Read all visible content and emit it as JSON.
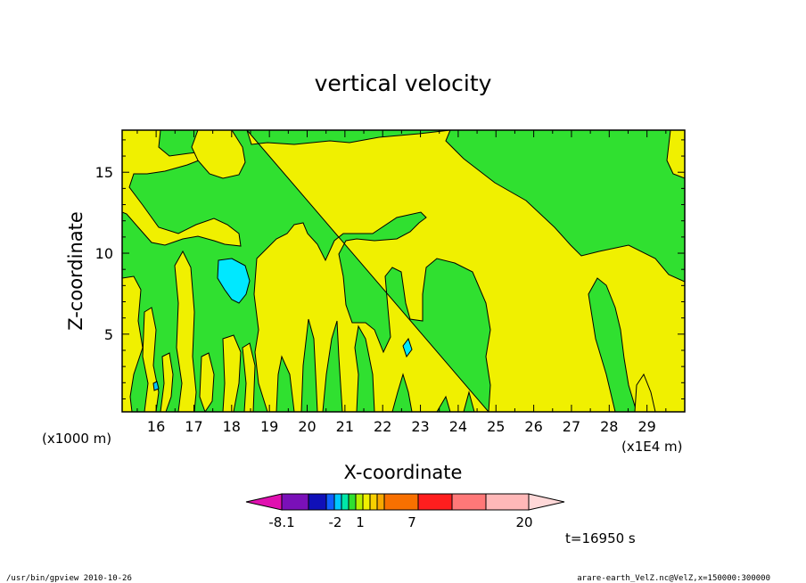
{
  "chart_data": {
    "type": "heatmap",
    "title": "vertical velocity",
    "xlabel": "X-coordinate",
    "ylabel": "Z-coordinate",
    "x_unit_note": "(x1E4 m)",
    "y_unit_note": "(x1000 m)",
    "x_ticks": [
      16,
      17,
      18,
      19,
      20,
      21,
      22,
      23,
      24,
      25,
      26,
      27,
      28,
      29
    ],
    "y_ticks": [
      5,
      10,
      15
    ],
    "xlim": [
      15.1,
      30
    ],
    "ylim": [
      0.2,
      17.6
    ],
    "colorbar": {
      "colors": [
        "#e010b0",
        "#7a10b8",
        "#1010b8",
        "#1060ff",
        "#00c8ff",
        "#00e8a8",
        "#30e030",
        "#b8f000",
        "#f0f000",
        "#f8d000",
        "#f8a800",
        "#f87000",
        "#ff1e1e",
        "#ff7878",
        "#ffb8b8",
        "#ffd8d8"
      ],
      "tick_labels": [
        "-8.1",
        "-2",
        "1",
        "7",
        "20"
      ],
      "tick_values": [
        -8.1,
        -2,
        1,
        7,
        20
      ]
    },
    "legend_placement": "bottom-center",
    "time_label": "t=16950 s"
  },
  "footer": {
    "left": "/usr/bin/gpview   2010-10-26",
    "right": "arare-earth_VelZ.nc@VelZ,x=150000:300000"
  }
}
